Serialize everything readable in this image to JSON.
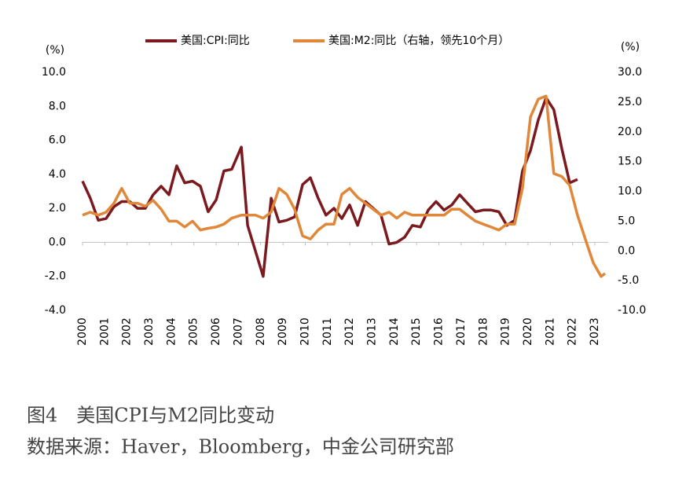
{
  "chart_data": {
    "type": "line",
    "legend": "top",
    "y_unit_label": "(%)",
    "y2_unit_label": "(%)",
    "x": [
      2000.0,
      2000.35,
      2000.71,
      2001.06,
      2001.41,
      2001.76,
      2002.12,
      2002.47,
      2002.82,
      2003.17,
      2003.53,
      2003.88,
      2004.23,
      2004.59,
      2004.94,
      2005.29,
      2005.64,
      2006.0,
      2006.35,
      2006.7,
      2007.13,
      2007.41,
      2007.76,
      2008.11,
      2008.47,
      2008.82,
      2009.17,
      2009.52,
      2009.88,
      2010.23,
      2010.58,
      2010.93,
      2011.29,
      2011.64,
      2011.99,
      2012.35,
      2012.7,
      2013.05,
      2013.4,
      2013.76,
      2014.11,
      2014.46,
      2014.81,
      2015.17,
      2015.52,
      2015.87,
      2016.23,
      2016.58,
      2016.93,
      2017.28,
      2017.64,
      2017.99,
      2018.34,
      2018.69,
      2019.05,
      2019.4,
      2019.75,
      2020.11,
      2020.46,
      2020.81,
      2021.16,
      2021.52,
      2021.87,
      2022.22,
      2022.57,
      2022.93,
      2023.28,
      2023.46
    ],
    "series": [
      {
        "name": "美国:CPI:同比",
        "color": "#7b1a1e",
        "axis": "y",
        "values": [
          3.6,
          2.6,
          1.3,
          1.4,
          2.1,
          2.4,
          2.4,
          2.0,
          2.0,
          2.8,
          3.3,
          2.8,
          4.5,
          3.5,
          3.6,
          3.3,
          1.8,
          2.5,
          4.2,
          4.3,
          5.6,
          1.0,
          -0.5,
          -2.0,
          2.6,
          1.2,
          1.3,
          1.5,
          3.4,
          3.8,
          2.6,
          1.6,
          2.0,
          1.4,
          2.2,
          1.0,
          2.4,
          2.0,
          1.6,
          -0.1,
          0.0,
          0.3,
          1.0,
          0.9,
          1.9,
          2.4,
          1.9,
          2.2,
          2.8,
          2.3,
          1.8,
          1.9,
          1.9,
          1.8,
          1.0,
          1.3,
          4.2,
          5.4,
          7.2,
          8.5,
          7.8,
          5.5,
          3.5,
          3.7,
          null,
          null,
          null,
          null
        ]
      },
      {
        "name": "美国:M2:同比（右轴，领先10个月）",
        "color": "#e0873a",
        "axis": "y2",
        "values": [
          6,
          6.5,
          6,
          6.5,
          8,
          10.5,
          8,
          8,
          7.5,
          8.5,
          7,
          5,
          5,
          4,
          5,
          3.5,
          3.8,
          4,
          4.5,
          5.5,
          6,
          6,
          6,
          5.5,
          6.5,
          10.5,
          9.5,
          7,
          2.5,
          2.0,
          3.5,
          4.5,
          4.5,
          9.5,
          10.5,
          9,
          8,
          7,
          6,
          6.5,
          5.5,
          6.5,
          6,
          6,
          6,
          6,
          6,
          7,
          7,
          6,
          5,
          4.5,
          4,
          3.5,
          4.5,
          4.5,
          10.5,
          22.5,
          25.5,
          26,
          13,
          12.5,
          11,
          6,
          2,
          -2,
          -4.3,
          -3.8
        ]
      }
    ],
    "xlim": [
      2000,
      2023.6
    ],
    "xticks": [
      2000,
      2001,
      2002,
      2003,
      2004,
      2005,
      2006,
      2007,
      2008,
      2009,
      2010,
      2011,
      2012,
      2013,
      2014,
      2015,
      2016,
      2017,
      2018,
      2019,
      2020,
      2021,
      2022,
      2023
    ],
    "ylim": [
      -4,
      10
    ],
    "yticks": [
      {
        "value": -4,
        "label": "-4.0"
      },
      {
        "value": -2,
        "label": "-2.0"
      },
      {
        "value": 0,
        "label": "0.0"
      },
      {
        "value": 2,
        "label": "2.0"
      },
      {
        "value": 4,
        "label": "4.0"
      },
      {
        "value": 6,
        "label": "6.0"
      },
      {
        "value": 8,
        "label": "8.0"
      },
      {
        "value": 10,
        "label": "10.0"
      }
    ],
    "y2lim": [
      -10,
      30
    ],
    "y2ticks": [
      {
        "value": -10,
        "label": "-10.0"
      },
      {
        "value": -5,
        "label": "-5.0"
      },
      {
        "value": 0,
        "label": "0.0"
      },
      {
        "value": 5,
        "label": "5.0"
      },
      {
        "value": 10,
        "label": "10.0"
      },
      {
        "value": 15,
        "label": "15.0"
      },
      {
        "value": 20,
        "label": "20.0"
      },
      {
        "value": 25,
        "label": "25.0"
      },
      {
        "value": 30,
        "label": "30.0"
      }
    ],
    "caption": "图4　美国CPI与M2同比变动",
    "source": "数据来源：Haver，Bloomberg，中金公司研究部"
  }
}
